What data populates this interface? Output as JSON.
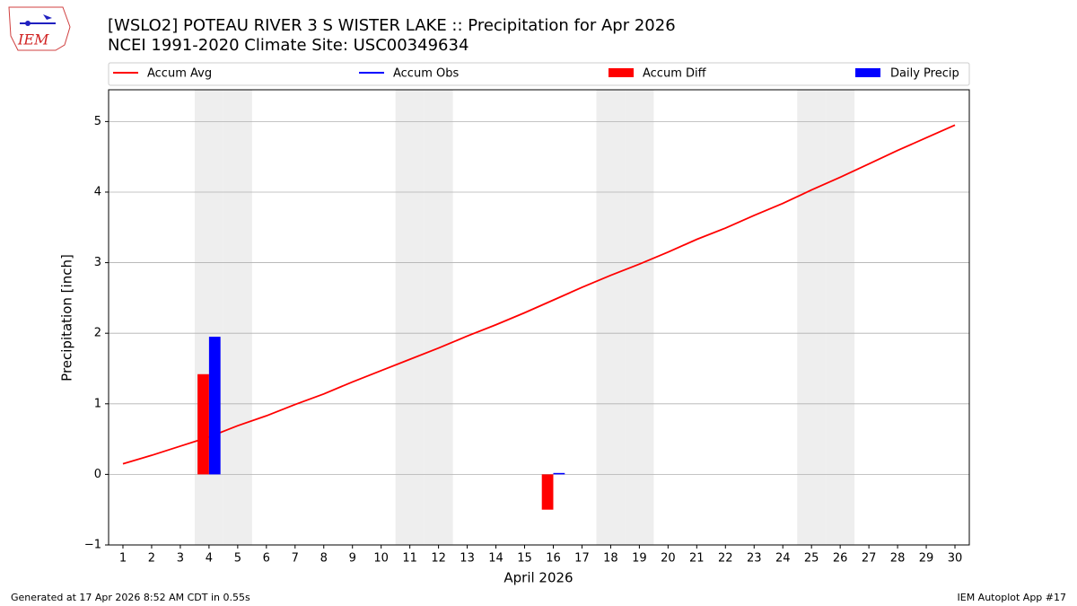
{
  "logo_text": "IEM",
  "footer_left": "Generated at 17 Apr 2026 8:52 AM CDT in 0.55s",
  "footer_right": "IEM Autoplot App #17",
  "chart_data": {
    "type": "bar_line",
    "title": "[WSLO2] POTEAU RIVER 3 S WISTER LAKE :: Precipitation for Apr 2026",
    "subtitle": "NCEI 1991-2020 Climate Site: USC00349634",
    "x_label": "April 2026",
    "y_label": "Precipitation [inch]",
    "x": [
      1,
      2,
      3,
      4,
      5,
      6,
      7,
      8,
      9,
      10,
      11,
      12,
      13,
      14,
      15,
      16,
      17,
      18,
      19,
      20,
      21,
      22,
      23,
      24,
      25,
      26,
      27,
      28,
      29,
      30
    ],
    "xlim": [
      0.5,
      30.5
    ],
    "xticks": [
      1,
      2,
      3,
      4,
      5,
      6,
      7,
      8,
      9,
      10,
      11,
      12,
      13,
      14,
      15,
      16,
      17,
      18,
      19,
      20,
      21,
      22,
      23,
      24,
      25,
      26,
      27,
      28,
      29,
      30
    ],
    "ylim": [
      -1.0,
      5.45
    ],
    "yticks": [
      {
        "value": -1,
        "label": "−1"
      },
      0,
      1,
      2,
      3,
      4,
      5
    ],
    "grid": true,
    "shaded_days": [
      4,
      5,
      11,
      12,
      18,
      19,
      25,
      26
    ],
    "series": [
      {
        "name": "Accum Avg",
        "kind": "line",
        "color": "#ff0000",
        "values": [
          0.15,
          0.27,
          0.4,
          0.53,
          0.69,
          0.83,
          0.99,
          1.14,
          1.31,
          1.47,
          1.63,
          1.79,
          1.96,
          2.12,
          2.29,
          2.47,
          2.65,
          2.82,
          2.98,
          3.15,
          3.33,
          3.49,
          3.67,
          3.84,
          4.03,
          4.21,
          4.4,
          4.59,
          4.77,
          4.95
        ]
      },
      {
        "name": "Accum Obs",
        "kind": "line",
        "color": "#0000ff",
        "values": [
          null,
          null,
          null,
          null,
          null,
          null,
          null,
          null,
          null,
          null,
          null,
          null,
          null,
          null,
          null,
          null,
          null,
          null,
          null,
          null,
          null,
          null,
          null,
          null,
          null,
          null,
          null,
          null,
          null,
          null
        ]
      },
      {
        "name": "Accum Diff",
        "kind": "bar",
        "color": "#ff0000",
        "values": [
          null,
          null,
          null,
          1.42,
          null,
          null,
          null,
          null,
          null,
          null,
          null,
          null,
          null,
          null,
          null,
          -0.5,
          null,
          null,
          null,
          null,
          null,
          null,
          null,
          null,
          null,
          null,
          null,
          null,
          null,
          null
        ]
      },
      {
        "name": "Daily Precip",
        "kind": "bar",
        "color": "#0000ff",
        "values": [
          null,
          null,
          null,
          1.95,
          null,
          null,
          null,
          null,
          null,
          null,
          null,
          null,
          null,
          null,
          null,
          0.02,
          null,
          null,
          null,
          null,
          null,
          null,
          null,
          null,
          null,
          null,
          null,
          null,
          null,
          null
        ]
      }
    ]
  }
}
